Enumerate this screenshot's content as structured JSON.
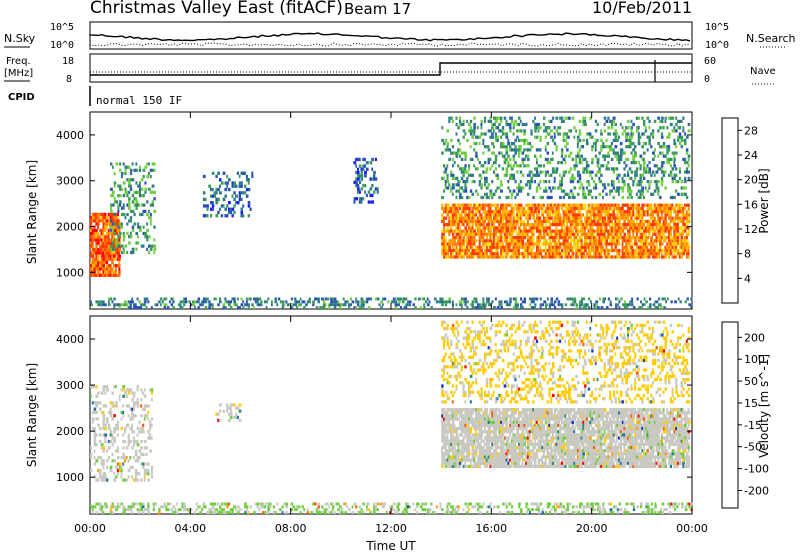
{
  "header": {
    "title": "Christmas Valley East (fitACF)",
    "beam": "Beam 17",
    "date": "10/Feb/2011"
  },
  "strip": {
    "nsky_label": "N.Sky",
    "nsky_ticks": [
      "10^5",
      "10^0"
    ],
    "nsearch_label": "N.Search",
    "nsearch_ticks": [
      "10^5",
      "10^0"
    ],
    "freq_label_1": "Freq.",
    "freq_label_2": "[MHz]",
    "freq_ticks": [
      "18",
      "8"
    ],
    "nave_label": "Nave",
    "nave_ticks": [
      "60",
      "0"
    ],
    "cpid_label": "CPID",
    "cpid_value": "normal 150 IF"
  },
  "colors": {
    "power_scale": [
      "#1c1cff",
      "#2a4fb8",
      "#2f7a8a",
      "#3a9a5a",
      "#6fcf3f",
      "#f2e21a",
      "#ffb300",
      "#ff7a00",
      "#ff3a00",
      "#ff0000"
    ],
    "velocity_scale": [
      "#1530c8",
      "#1f6fa8",
      "#2f8f6a",
      "#6ccf3a",
      "#c8c8c0",
      "#ffcc00",
      "#ff9a00",
      "#ff5a00",
      "#ff0000"
    ]
  },
  "chart_data": [
    {
      "type": "heatmap",
      "panel": "power",
      "ylabel": "Slant Range [km]",
      "ylim": [
        200,
        4500
      ],
      "yticks": [
        "1000",
        "2000",
        "3000",
        "4000"
      ],
      "xlim": [
        "00:00",
        "24:00"
      ],
      "xticks": [
        "00:00",
        "04:00",
        "08:00",
        "12:00",
        "16:00",
        "20:00",
        "00:00"
      ],
      "colorbar_label": "Power [dB]",
      "colorbar_ticks": [
        "4",
        "8",
        "12",
        "16",
        "20",
        "24",
        "28"
      ],
      "colorbar_range": [
        0,
        30
      ],
      "regions": [
        {
          "t0": 0.0,
          "t1": 1.2,
          "r0": 900,
          "r1": 2300,
          "value": 24
        },
        {
          "t0": 0.8,
          "t1": 2.6,
          "r0": 1400,
          "r1": 3400,
          "value": 10
        },
        {
          "t0": 4.5,
          "t1": 6.5,
          "r0": 2200,
          "r1": 3200,
          "value": 6
        },
        {
          "t0": 10.5,
          "t1": 11.5,
          "r0": 2500,
          "r1": 3500,
          "value": 6
        },
        {
          "t0": 14.0,
          "t1": 23.9,
          "r0": 1300,
          "r1": 2500,
          "value": 22
        },
        {
          "t0": 14.0,
          "t1": 23.9,
          "r0": 2600,
          "r1": 4400,
          "value": 10
        },
        {
          "t0": 0.0,
          "t1": 24.0,
          "r0": 200,
          "r1": 450,
          "value": 8
        }
      ]
    },
    {
      "type": "heatmap",
      "panel": "velocity",
      "ylabel": "Slant Range [km]",
      "ylim": [
        200,
        4500
      ],
      "yticks": [
        "1000",
        "2000",
        "3000",
        "4000"
      ],
      "xlim": [
        "00:00",
        "24:00"
      ],
      "xticks": [
        "00:00",
        "04:00",
        "08:00",
        "12:00",
        "16:00",
        "20:00",
        "00:00"
      ],
      "xlabel": "Time UT",
      "colorbar_label": "Velocity [m s^-1]",
      "colorbar_ticks": [
        "200",
        "100",
        "50",
        "15",
        "-15",
        "-50",
        "-100",
        "-200"
      ],
      "colorbar_range": [
        -250,
        250
      ],
      "regions": [
        {
          "t0": 0.0,
          "t1": 2.5,
          "r0": 900,
          "r1": 3000,
          "value": 0
        },
        {
          "t0": 5.0,
          "t1": 6.0,
          "r0": 2200,
          "r1": 2600,
          "value": 0
        },
        {
          "t0": 14.0,
          "t1": 23.9,
          "r0": 1200,
          "r1": 2500,
          "value": 0
        },
        {
          "t0": 14.0,
          "t1": 23.9,
          "r0": 2600,
          "r1": 4400,
          "value": -40
        },
        {
          "t0": 0.0,
          "t1": 24.0,
          "r0": 200,
          "r1": 450,
          "value": 30
        }
      ]
    }
  ]
}
